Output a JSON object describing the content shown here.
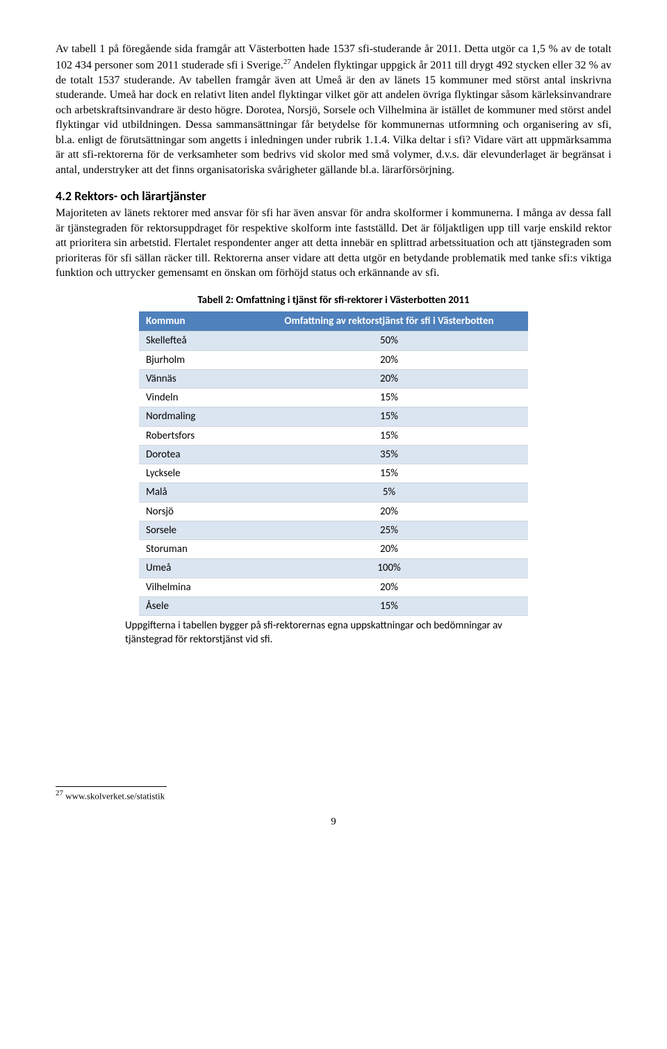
{
  "paragraph1": "Av tabell 1 på föregående sida framgår att Västerbotten hade 1537 sfi-studerande år 2011. Detta utgör ca 1,5 % av de totalt 102 434 personer som 2011 studerade sfi i Sverige.27 Andelen flyktingar uppgick år 2011 till drygt 492 stycken eller 32 % av de totalt 1537 studerande. Av tabellen framgår även att Umeå är den av länets 15 kommuner med störst antal inskrivna studerande. Umeå har dock en relativt liten andel flyktingar vilket gör att andelen övriga flyktingar såsom kärleksinvandrare och arbetskraftsinvandrare är desto högre. Dorotea, Norsjö, Sorsele och Vilhelmina är istället de kommuner med störst andel flyktingar vid utbildningen. Dessa sammansättningar får betydelse för kommunernas utformning och organisering av sfi, bl.a. enligt de förutsättningar som angetts i inledningen under rubrik 1.1.4. Vilka deltar i sfi? Vidare värt att uppmärksamma är att sfi-rektorerna för de verksamheter som bedrivs vid skolor med små volymer, d.v.s. där elevunderlaget är begränsat i antal, understryker att det finns organisatoriska svårigheter gällande bl.a. lärarförsörjning.",
  "heading": "4.2 Rektors- och lärartjänster",
  "paragraph2": "Majoriteten av länets rektorer med ansvar för sfi har även ansvar för andra skolformer i kommunerna. I många av dessa fall är tjänstegraden för rektorsuppdraget för respektive skolform inte fastställd. Det är följaktligen upp till varje enskild rektor att prioritera sin arbetstid. Flertalet respondenter anger att detta innebär en splittrad arbetssituation och att tjänstegraden som prioriteras för sfi sällan räcker till. Rektorerna anser vidare att detta utgör en betydande problematik med tanke sfi:s viktiga funktion och uttrycker gemensamt en önskan om förhöjd status och erkännande av sfi.",
  "table": {
    "title": "Tabell 2: Omfattning i tjänst för sfi-rektorer i Västerbotten 2011",
    "columns": [
      "Kommun",
      "Omfattning av rektorstjänst för sfi i Västerbotten"
    ],
    "col_widths": [
      "140px",
      "380px"
    ],
    "header_bg": "#4f81bd",
    "header_color": "#ffffff",
    "row_bg_odd": "#dbe5f1",
    "row_bg_even": "#ffffff",
    "border_color": "#cfd5db",
    "rows": [
      [
        "Skellefteå",
        "50%"
      ],
      [
        "Bjurholm",
        "20%"
      ],
      [
        "Vännäs",
        "20%"
      ],
      [
        "Vindeln",
        "15%"
      ],
      [
        "Nordmaling",
        "15%"
      ],
      [
        "Robertsfors",
        "15%"
      ],
      [
        "Dorotea",
        "35%"
      ],
      [
        "Lycksele",
        "15%"
      ],
      [
        "Malå",
        "5%"
      ],
      [
        "Norsjö",
        "20%"
      ],
      [
        "Sorsele",
        "25%"
      ],
      [
        "Storuman",
        "20%"
      ],
      [
        "Umeå",
        "100%"
      ],
      [
        "Vilhelmina",
        "20%"
      ],
      [
        "Åsele",
        "15%"
      ]
    ],
    "note": "Uppgifterna i tabellen bygger på sfi-rektorernas egna uppskattningar och bedömningar av tjänstegrad för rektorstjänst vid sfi."
  },
  "footnote": {
    "num": "27",
    "text": " www.skolverket.se/statistik"
  },
  "page_number": "9"
}
